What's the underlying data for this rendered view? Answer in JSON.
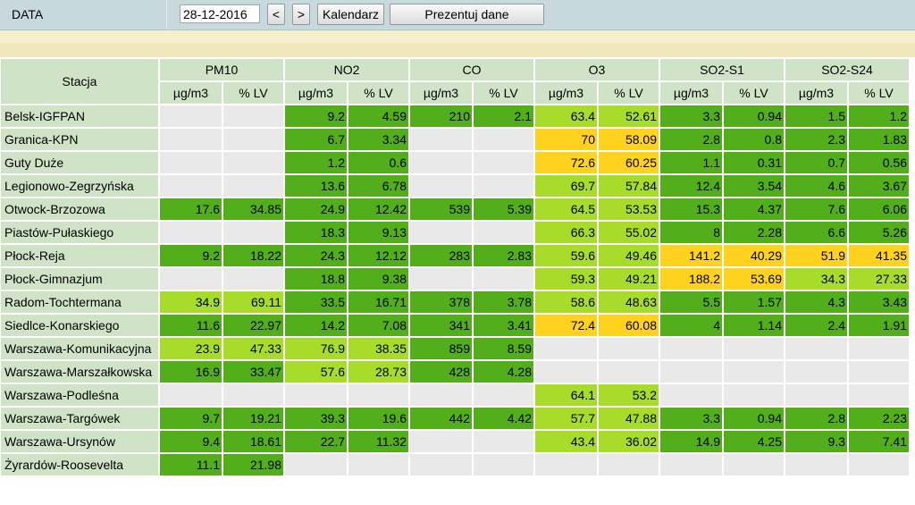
{
  "header": {
    "label": "DATA",
    "date_value": "28-12-2016",
    "prev_label": "<",
    "next_label": ">",
    "calendar_label": "Kalendarz",
    "show_label": "Prezentuj dane"
  },
  "table": {
    "station_header": "Stacja",
    "pollutants": [
      "PM10",
      "NO2",
      "CO",
      "O3",
      "SO2-S1",
      "SO2-S24"
    ],
    "units": [
      "µg/m3",
      "% LV"
    ],
    "legend_colors": {
      "good": "#52ae1a",
      "fair": "#a8dc2a",
      "moderate": "#ffd21f",
      "none": "#e9e9e9"
    },
    "rows": [
      {
        "station": "Belsk-IGFPAN",
        "cells": [
          [
            "",
            ""
          ],
          [
            "9.2",
            "4.59"
          ],
          [
            "210",
            "2.1"
          ],
          [
            "63.4",
            "52.61"
          ],
          [
            "3.3",
            "0.94"
          ],
          [
            "1.5",
            "1.2"
          ]
        ],
        "colors": [
          "e",
          "e",
          "g",
          "g",
          "g",
          "g",
          "l",
          "l",
          "g",
          "g",
          "g",
          "g"
        ]
      },
      {
        "station": "Granica-KPN",
        "cells": [
          [
            "",
            ""
          ],
          [
            "6.7",
            "3.34"
          ],
          [
            "",
            ""
          ],
          [
            "70",
            "58.09"
          ],
          [
            "2.8",
            "0.8"
          ],
          [
            "2.3",
            "1.83"
          ]
        ],
        "colors": [
          "e",
          "e",
          "g",
          "g",
          "e",
          "e",
          "y",
          "y",
          "g",
          "g",
          "g",
          "g"
        ]
      },
      {
        "station": "Guty Duże",
        "cells": [
          [
            "",
            ""
          ],
          [
            "1.2",
            "0.6"
          ],
          [
            "",
            ""
          ],
          [
            "72.6",
            "60.25"
          ],
          [
            "1.1",
            "0.31"
          ],
          [
            "0.7",
            "0.56"
          ]
        ],
        "colors": [
          "e",
          "e",
          "g",
          "g",
          "e",
          "e",
          "y",
          "y",
          "g",
          "g",
          "g",
          "g"
        ]
      },
      {
        "station": "Legionowo-Zegrzyńska",
        "cells": [
          [
            "",
            ""
          ],
          [
            "13.6",
            "6.78"
          ],
          [
            "",
            ""
          ],
          [
            "69.7",
            "57.84"
          ],
          [
            "12.4",
            "3.54"
          ],
          [
            "4.6",
            "3.67"
          ]
        ],
        "colors": [
          "e",
          "e",
          "g",
          "g",
          "e",
          "e",
          "l",
          "l",
          "g",
          "g",
          "g",
          "g"
        ]
      },
      {
        "station": "Otwock-Brzozowa",
        "cells": [
          [
            "17.6",
            "34.85"
          ],
          [
            "24.9",
            "12.42"
          ],
          [
            "539",
            "5.39"
          ],
          [
            "64.5",
            "53.53"
          ],
          [
            "15.3",
            "4.37"
          ],
          [
            "7.6",
            "6.06"
          ]
        ],
        "colors": [
          "g",
          "g",
          "g",
          "g",
          "g",
          "g",
          "l",
          "l",
          "g",
          "g",
          "g",
          "g"
        ]
      },
      {
        "station": "Piastów-Pułaskiego",
        "cells": [
          [
            "",
            ""
          ],
          [
            "18.3",
            "9.13"
          ],
          [
            "",
            ""
          ],
          [
            "66.3",
            "55.02"
          ],
          [
            "8",
            "2.28"
          ],
          [
            "6.6",
            "5.26"
          ]
        ],
        "colors": [
          "e",
          "e",
          "g",
          "g",
          "e",
          "e",
          "l",
          "l",
          "g",
          "g",
          "g",
          "g"
        ]
      },
      {
        "station": "Płock-Reja",
        "cells": [
          [
            "9.2",
            "18.22"
          ],
          [
            "24.3",
            "12.12"
          ],
          [
            "283",
            "2.83"
          ],
          [
            "59.6",
            "49.46"
          ],
          [
            "141.2",
            "40.29"
          ],
          [
            "51.9",
            "41.35"
          ]
        ],
        "colors": [
          "g",
          "g",
          "g",
          "g",
          "g",
          "g",
          "l",
          "l",
          "y",
          "y",
          "y",
          "y"
        ]
      },
      {
        "station": "Płock-Gimnazjum",
        "cells": [
          [
            "",
            ""
          ],
          [
            "18.8",
            "9.38"
          ],
          [
            "",
            ""
          ],
          [
            "59.3",
            "49.21"
          ],
          [
            "188.2",
            "53.69"
          ],
          [
            "34.3",
            "27.33"
          ]
        ],
        "colors": [
          "e",
          "e",
          "g",
          "g",
          "e",
          "e",
          "l",
          "l",
          "y",
          "y",
          "l",
          "l"
        ]
      },
      {
        "station": "Radom-Tochtermana",
        "cells": [
          [
            "34.9",
            "69.11"
          ],
          [
            "33.5",
            "16.71"
          ],
          [
            "378",
            "3.78"
          ],
          [
            "58.6",
            "48.63"
          ],
          [
            "5.5",
            "1.57"
          ],
          [
            "4.3",
            "3.43"
          ]
        ],
        "colors": [
          "l",
          "l",
          "g",
          "g",
          "g",
          "g",
          "l",
          "l",
          "g",
          "g",
          "g",
          "g"
        ]
      },
      {
        "station": "Siedlce-Konarskiego",
        "cells": [
          [
            "11.6",
            "22.97"
          ],
          [
            "14.2",
            "7.08"
          ],
          [
            "341",
            "3.41"
          ],
          [
            "72.4",
            "60.08"
          ],
          [
            "4",
            "1.14"
          ],
          [
            "2.4",
            "1.91"
          ]
        ],
        "colors": [
          "g",
          "g",
          "g",
          "g",
          "g",
          "g",
          "y",
          "y",
          "g",
          "g",
          "g",
          "g"
        ]
      },
      {
        "station": "Warszawa-Komunikacyjna",
        "cells": [
          [
            "23.9",
            "47.33"
          ],
          [
            "76.9",
            "38.35"
          ],
          [
            "859",
            "8.59"
          ],
          [
            "",
            ""
          ],
          [
            "",
            ""
          ],
          [
            "",
            ""
          ]
        ],
        "colors": [
          "l",
          "l",
          "l",
          "l",
          "g",
          "g",
          "e",
          "e",
          "e",
          "e",
          "e",
          "e"
        ]
      },
      {
        "station": "Warszawa-Marszałkowska",
        "cells": [
          [
            "16.9",
            "33.47"
          ],
          [
            "57.6",
            "28.73"
          ],
          [
            "428",
            "4.28"
          ],
          [
            "",
            ""
          ],
          [
            "",
            ""
          ],
          [
            "",
            ""
          ]
        ],
        "colors": [
          "g",
          "g",
          "l",
          "l",
          "g",
          "g",
          "e",
          "e",
          "e",
          "e",
          "e",
          "e"
        ]
      },
      {
        "station": "Warszawa-Podleśna",
        "cells": [
          [
            "",
            ""
          ],
          [
            "",
            ""
          ],
          [
            "",
            ""
          ],
          [
            "64.1",
            "53.2"
          ],
          [
            "",
            ""
          ],
          [
            "",
            ""
          ]
        ],
        "colors": [
          "e",
          "e",
          "e",
          "e",
          "e",
          "e",
          "l",
          "l",
          "e",
          "e",
          "e",
          "e"
        ]
      },
      {
        "station": "Warszawa-Targówek",
        "cells": [
          [
            "9.7",
            "19.21"
          ],
          [
            "39.3",
            "19.6"
          ],
          [
            "442",
            "4.42"
          ],
          [
            "57.7",
            "47.88"
          ],
          [
            "3.3",
            "0.94"
          ],
          [
            "2.8",
            "2.23"
          ]
        ],
        "colors": [
          "g",
          "g",
          "g",
          "g",
          "g",
          "g",
          "l",
          "l",
          "g",
          "g",
          "g",
          "g"
        ]
      },
      {
        "station": "Warszawa-Ursynów",
        "cells": [
          [
            "9.4",
            "18.61"
          ],
          [
            "22.7",
            "11.32"
          ],
          [
            "",
            ""
          ],
          [
            "43.4",
            "36.02"
          ],
          [
            "14.9",
            "4.25"
          ],
          [
            "9.3",
            "7.41"
          ]
        ],
        "colors": [
          "g",
          "g",
          "g",
          "g",
          "e",
          "e",
          "l",
          "l",
          "g",
          "g",
          "g",
          "g"
        ]
      },
      {
        "station": "Żyrardów-Roosevelta",
        "cells": [
          [
            "11.1",
            "21.98"
          ],
          [
            "",
            ""
          ],
          [
            "",
            ""
          ],
          [
            "",
            ""
          ],
          [
            "",
            ""
          ],
          [
            "",
            ""
          ]
        ],
        "colors": [
          "g",
          "g",
          "e",
          "e",
          "e",
          "e",
          "e",
          "e",
          "e",
          "e",
          "e",
          "e"
        ]
      }
    ]
  }
}
